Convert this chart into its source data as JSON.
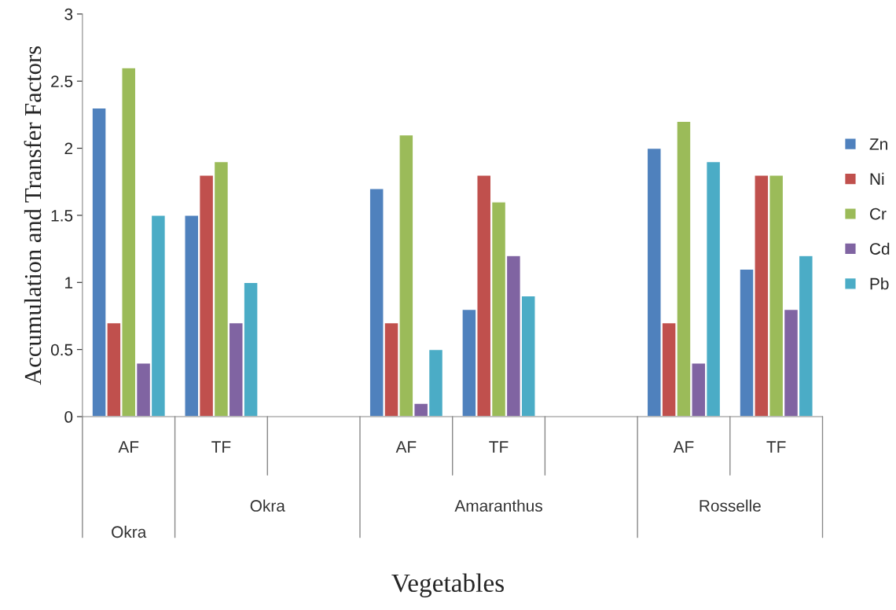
{
  "chart_data": {
    "type": "bar",
    "xlabel": "Vegetables",
    "ylabel": "Accumulation and Transfer Factors",
    "categories": [
      "AF",
      "TF",
      null,
      "AF",
      "TF",
      null,
      "AF",
      "TF"
    ],
    "annotations": [
      "Okra",
      "Okra",
      "Amaranthus",
      "Rosselle"
    ],
    "series": [
      {
        "name": "Zn",
        "color": "#4f81bd",
        "values": [
          2.3,
          1.5,
          null,
          1.7,
          0.8,
          null,
          2.0,
          1.1
        ]
      },
      {
        "name": "Ni",
        "color": "#c0504d",
        "values": [
          0.7,
          1.8,
          null,
          0.7,
          1.8,
          null,
          0.7,
          1.8
        ]
      },
      {
        "name": "Cr",
        "color": "#9bbb59",
        "values": [
          2.6,
          1.9,
          null,
          2.1,
          1.6,
          null,
          2.2,
          1.8
        ]
      },
      {
        "name": "Cd",
        "color": "#8064a2",
        "values": [
          0.4,
          0.7,
          null,
          0.1,
          1.2,
          null,
          0.4,
          0.8
        ]
      },
      {
        "name": "Pb",
        "color": "#4bacc6",
        "values": [
          1.5,
          1.0,
          null,
          0.5,
          0.9,
          null,
          1.9,
          1.2
        ]
      }
    ],
    "ylim": [
      0,
      3
    ],
    "yticks": [
      0,
      0.5,
      1,
      1.5,
      2,
      2.5,
      3
    ],
    "grid": false,
    "legend": "right"
  }
}
